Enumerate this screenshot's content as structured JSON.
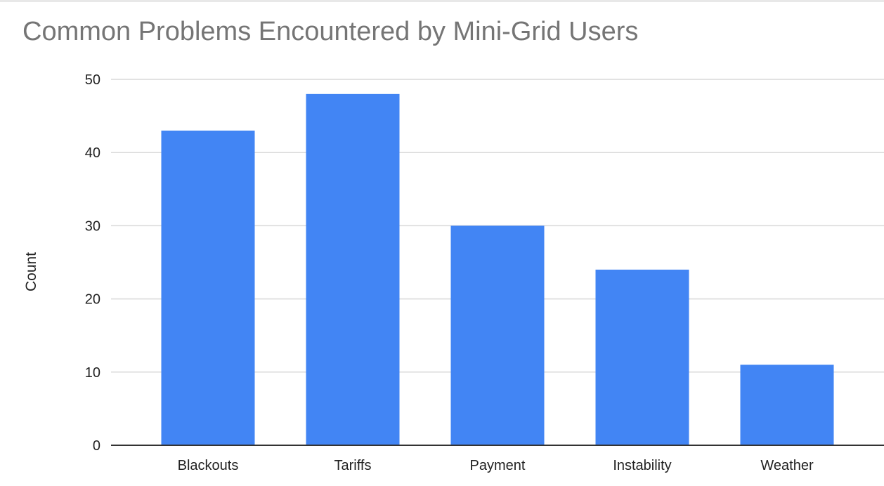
{
  "chart_data": {
    "type": "bar",
    "title": "Common Problems Encountered by Mini-Grid Users",
    "xlabel": "",
    "ylabel": "Count",
    "categories": [
      "Blackouts",
      "Tariffs",
      "Payment",
      "Instability",
      "Weather"
    ],
    "values": [
      43,
      48,
      30,
      24,
      11
    ],
    "ylim": [
      0,
      50
    ],
    "yticks": [
      0,
      10,
      20,
      30,
      40,
      50
    ],
    "grid": true,
    "legend": "none",
    "colors": {
      "bar": "#4285f4",
      "grid": "#d9d9d9",
      "axis": "#333333",
      "title": "#757575"
    }
  }
}
